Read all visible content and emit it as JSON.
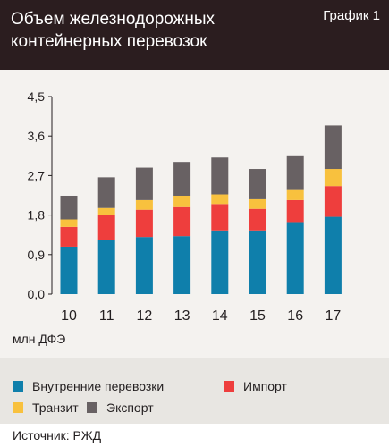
{
  "header": {
    "title": "Объем железнодорожных контейнерных перевозок",
    "figure_label": "График 1"
  },
  "unit_label": "млн ДФЭ",
  "source": "Источник: РЖД",
  "chart_data": {
    "type": "bar",
    "stacked": true,
    "categories": [
      "10",
      "11",
      "12",
      "13",
      "14",
      "15",
      "16",
      "17"
    ],
    "ylim": [
      0,
      4.5
    ],
    "yticks": [
      "0,0",
      "0,9",
      "1,8",
      "2,7",
      "3,6",
      "4,5"
    ],
    "grid": false,
    "legend_position": "bottom",
    "series": [
      {
        "name": "Внутренние перевозки",
        "color": "#0f7fab",
        "values": [
          1.08,
          1.23,
          1.3,
          1.32,
          1.45,
          1.45,
          1.64,
          1.76
        ]
      },
      {
        "name": "Импорт",
        "color": "#ee3e3d",
        "values": [
          0.45,
          0.57,
          0.62,
          0.68,
          0.6,
          0.49,
          0.5,
          0.7
        ]
      },
      {
        "name": "Транзит",
        "color": "#f8c13e",
        "values": [
          0.17,
          0.16,
          0.22,
          0.24,
          0.22,
          0.22,
          0.25,
          0.39
        ]
      },
      {
        "name": "Экспорт",
        "color": "#686163",
        "values": [
          0.54,
          0.7,
          0.74,
          0.77,
          0.84,
          0.69,
          0.77,
          0.99
        ]
      }
    ]
  }
}
